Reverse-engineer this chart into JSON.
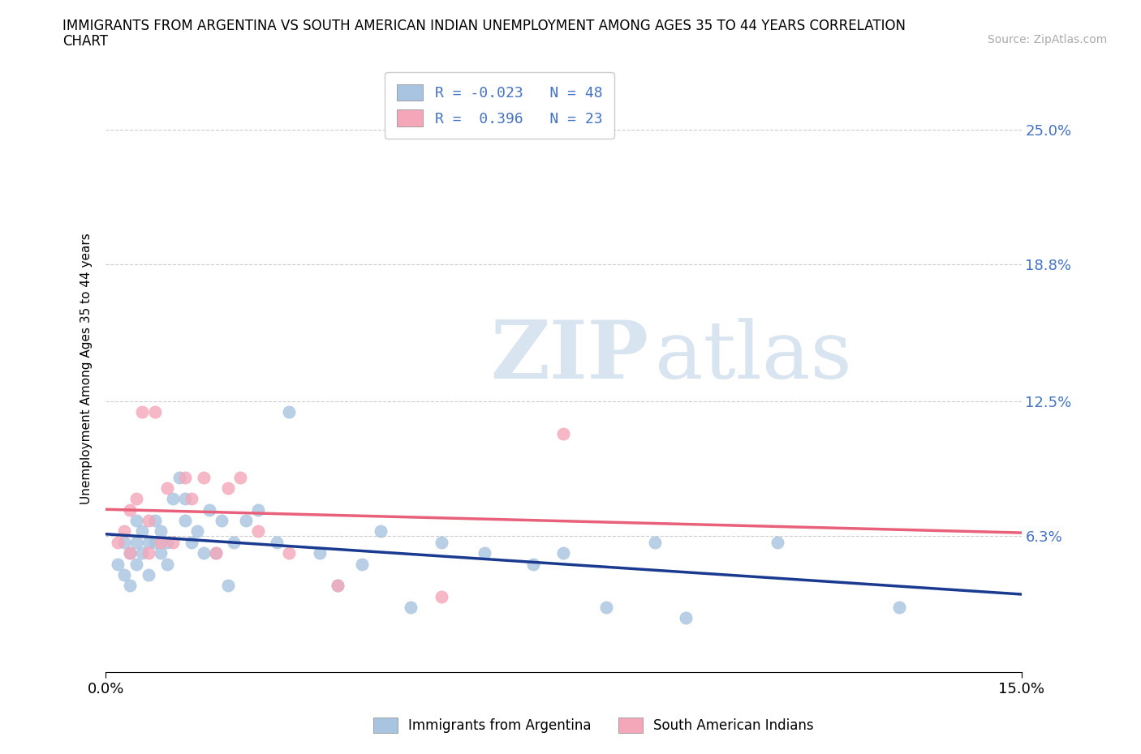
{
  "title_line1": "IMMIGRANTS FROM ARGENTINA VS SOUTH AMERICAN INDIAN UNEMPLOYMENT AMONG AGES 35 TO 44 YEARS CORRELATION",
  "title_line2": "CHART",
  "source": "Source: ZipAtlas.com",
  "ylabel": "Unemployment Among Ages 35 to 44 years",
  "xlim": [
    0.0,
    0.15
  ],
  "ylim": [
    0.0,
    0.28
  ],
  "yticks": [
    0.0,
    0.063,
    0.125,
    0.188,
    0.25
  ],
  "ytick_labels": [
    "",
    "6.3%",
    "12.5%",
    "18.8%",
    "25.0%"
  ],
  "xticks": [
    0.0,
    0.15
  ],
  "xtick_labels": [
    "0.0%",
    "15.0%"
  ],
  "blue_color": "#a8c4e0",
  "pink_color": "#f4a7b9",
  "trend_blue_color": "#1a3a8f",
  "trend_pink_color": "#e8607a",
  "r_blue": -0.023,
  "n_blue": 48,
  "r_pink": 0.396,
  "n_pink": 23,
  "blue_scatter_x": [
    0.002,
    0.003,
    0.003,
    0.004,
    0.004,
    0.005,
    0.005,
    0.005,
    0.006,
    0.006,
    0.007,
    0.007,
    0.008,
    0.008,
    0.009,
    0.009,
    0.01,
    0.01,
    0.011,
    0.012,
    0.013,
    0.013,
    0.014,
    0.015,
    0.016,
    0.017,
    0.018,
    0.019,
    0.02,
    0.021,
    0.023,
    0.025,
    0.028,
    0.03,
    0.035,
    0.038,
    0.042,
    0.045,
    0.05,
    0.055,
    0.062,
    0.07,
    0.075,
    0.082,
    0.09,
    0.095,
    0.11,
    0.13
  ],
  "blue_scatter_y": [
    0.05,
    0.045,
    0.06,
    0.04,
    0.055,
    0.05,
    0.06,
    0.07,
    0.055,
    0.065,
    0.045,
    0.06,
    0.06,
    0.07,
    0.055,
    0.065,
    0.05,
    0.06,
    0.08,
    0.09,
    0.07,
    0.08,
    0.06,
    0.065,
    0.055,
    0.075,
    0.055,
    0.07,
    0.04,
    0.06,
    0.07,
    0.075,
    0.06,
    0.12,
    0.055,
    0.04,
    0.05,
    0.065,
    0.03,
    0.06,
    0.055,
    0.05,
    0.055,
    0.03,
    0.06,
    0.025,
    0.06,
    0.03
  ],
  "pink_scatter_x": [
    0.002,
    0.003,
    0.004,
    0.004,
    0.005,
    0.006,
    0.007,
    0.007,
    0.008,
    0.009,
    0.01,
    0.011,
    0.013,
    0.014,
    0.016,
    0.018,
    0.02,
    0.022,
    0.025,
    0.03,
    0.038,
    0.055,
    0.075
  ],
  "pink_scatter_y": [
    0.06,
    0.065,
    0.075,
    0.055,
    0.08,
    0.12,
    0.055,
    0.07,
    0.12,
    0.06,
    0.085,
    0.06,
    0.09,
    0.08,
    0.09,
    0.055,
    0.085,
    0.09,
    0.065,
    0.055,
    0.04,
    0.035,
    0.11
  ],
  "legend_label_blue": "Immigrants from Argentina",
  "legend_label_pink": "South American Indians",
  "watermark_zip": "ZIP",
  "watermark_atlas": "atlas"
}
